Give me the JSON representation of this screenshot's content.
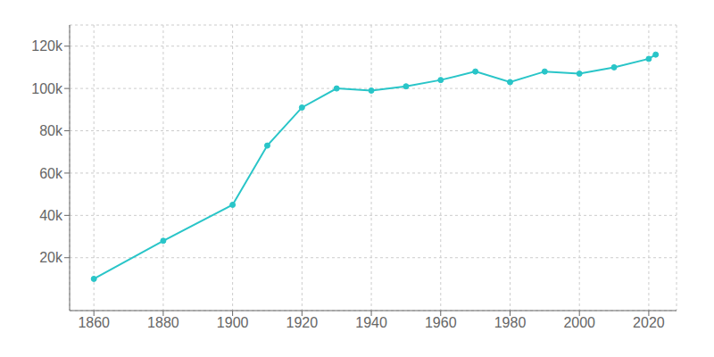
{
  "chart_data": {
    "type": "line",
    "x": [
      1860,
      1880,
      1900,
      1910,
      1920,
      1930,
      1940,
      1950,
      1960,
      1970,
      1980,
      1990,
      2000,
      2010,
      2020,
      2022
    ],
    "values": [
      10000,
      28000,
      45000,
      73000,
      91000,
      100000,
      99000,
      101000,
      104000,
      108000,
      103000,
      108000,
      107000,
      110000,
      114000,
      116000
    ],
    "color": "#29c5c8",
    "marker": "o",
    "xlim": [
      1853,
      2028
    ],
    "ylim": [
      -5000,
      130000
    ],
    "xticks": [
      1860,
      1880,
      1900,
      1920,
      1940,
      1960,
      1980,
      2000,
      2020
    ],
    "yticks": [
      {
        "value": 20000,
        "label": "20k"
      },
      {
        "value": 40000,
        "label": "40k"
      },
      {
        "value": 60000,
        "label": "60k"
      },
      {
        "value": 80000,
        "label": "80k"
      },
      {
        "value": 100000,
        "label": "100k"
      },
      {
        "value": 120000,
        "label": "120k"
      }
    ],
    "grid": true
  }
}
